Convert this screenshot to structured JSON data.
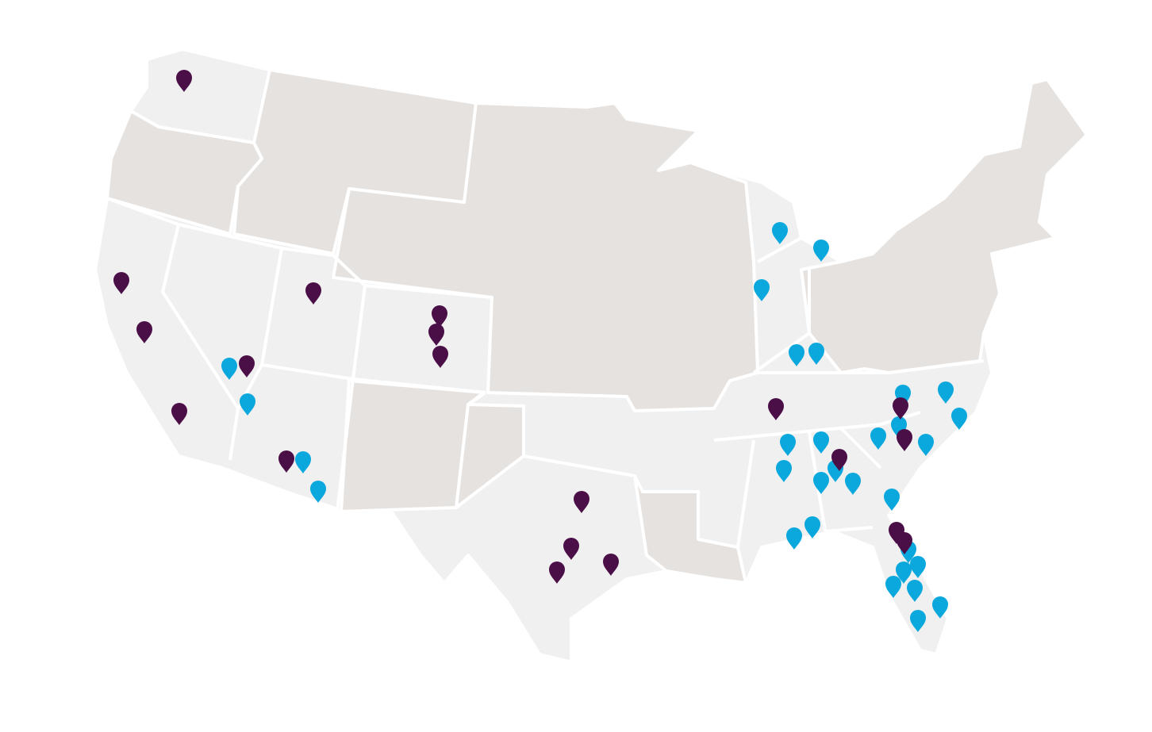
{
  "map": {
    "region": "contiguous-united-states",
    "colors": {
      "background": "#ffffff",
      "state_highlighted": "#f0f0f0",
      "state_default": "#e6e2df",
      "border": "#ffffff"
    },
    "highlighted_states": [
      "WA",
      "CA",
      "NV",
      "UT",
      "AZ",
      "CO",
      "TX",
      "MI",
      "IN",
      "KY",
      "TN",
      "MS",
      "AL",
      "GA",
      "FL",
      "SC",
      "NC"
    ]
  },
  "markers": {
    "icon": "map-pin-icon",
    "categories": [
      {
        "id": "purple",
        "color": "#4b0f48"
      },
      {
        "id": "blue",
        "color": "#0ba8dd"
      }
    ]
  }
}
